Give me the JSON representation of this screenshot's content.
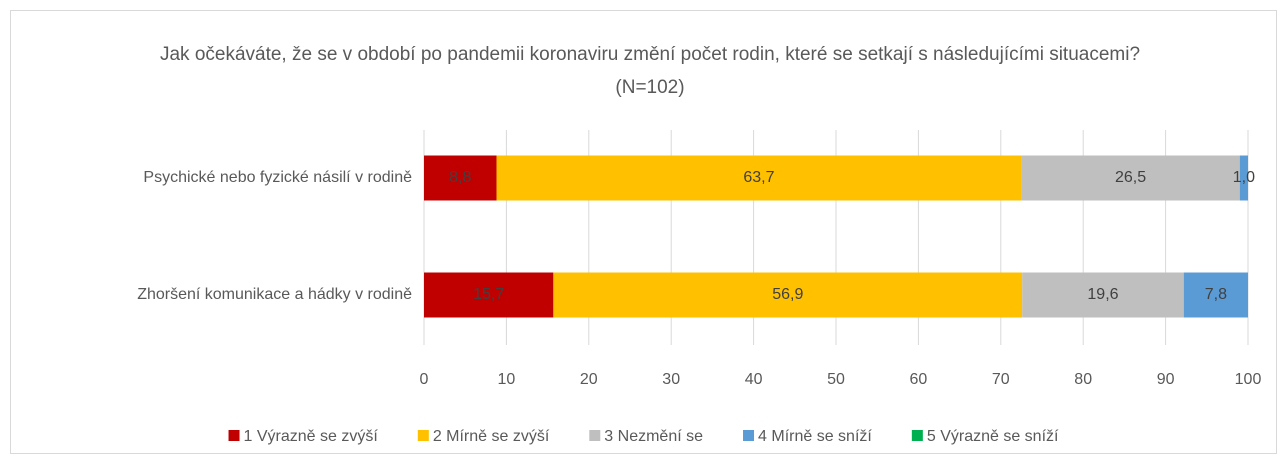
{
  "chart_data": {
    "type": "stacked_bar_horizontal",
    "title": "Jak očekáváte, že se v období po pandemii koronaviru změní počet rodin, které se setkají s následujícími situacemi? (N=102)",
    "categories": [
      "Psychické nebo fyzické násilí v rodině",
      "Zhoršení komunikace a hádky v rodině"
    ],
    "series": [
      {
        "name": "1 Výrazně se zvýší",
        "color": "#c00000",
        "values": [
          8.8,
          15.7
        ],
        "value_labels": [
          "8,8",
          "15,7"
        ]
      },
      {
        "name": "2 Mírně se zvýší",
        "color": "#ffc000",
        "values": [
          63.7,
          56.9
        ],
        "value_labels": [
          "63,7",
          "56,9"
        ]
      },
      {
        "name": "3 Nezmění se",
        "color": "#bfbfbf",
        "values": [
          26.5,
          19.6
        ],
        "value_labels": [
          "26,5",
          "19,6"
        ]
      },
      {
        "name": "4 Mírně se sníží",
        "color": "#5b9bd5",
        "values": [
          1.0,
          7.8
        ],
        "value_labels": [
          "1,0",
          "7,8"
        ]
      },
      {
        "name": "5 Výrazně se sníží",
        "color": "#00b050",
        "values": [
          0,
          0
        ]
      }
    ],
    "xlim": [
      0,
      100
    ],
    "xticks": [
      0,
      10,
      20,
      30,
      40,
      50,
      60,
      70,
      80,
      90,
      100
    ],
    "grid": true,
    "legend": "bottom"
  }
}
